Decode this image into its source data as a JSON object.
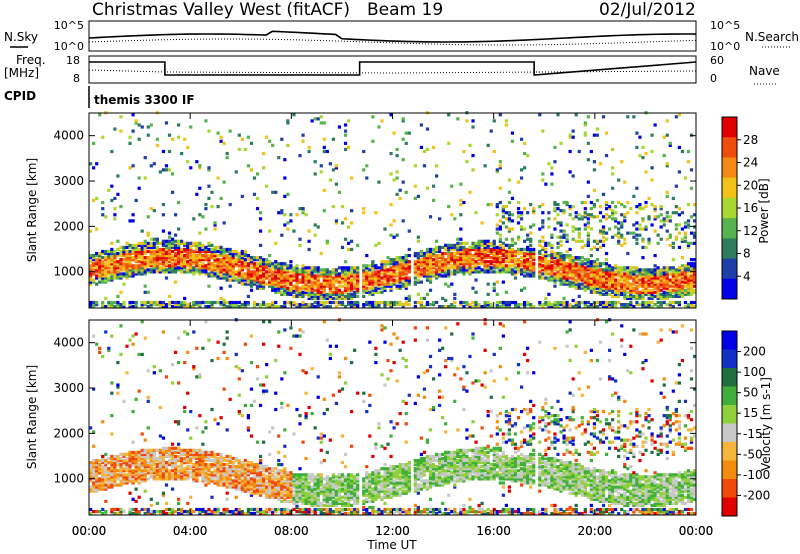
{
  "header": {
    "station": "Christmas Valley West (fitACF)",
    "beam": "Beam 19",
    "date": "02/Jul/2012"
  },
  "summary_panels": {
    "nsky_label": "N.Sky",
    "nsearch_label": "N.Search",
    "noise_ticks_left": [
      "10^5",
      "10^0"
    ],
    "noise_ticks_right": [
      "10^5",
      "10^0"
    ],
    "freq_label": [
      "Freq.",
      "[MHz]"
    ],
    "freq_ticks_left": [
      "18",
      "8"
    ],
    "nave_label": "Nave",
    "nave_ticks_right": [
      "60",
      "0"
    ],
    "cpid_label": "CPID",
    "cpid_value": "themis 3300 IF"
  },
  "colors": {
    "power": [
      "#0000e6",
      "#1f3fa8",
      "#2e7d5c",
      "#57b34d",
      "#a8d82f",
      "#f2c21a",
      "#f48a12",
      "#ee4d0e",
      "#e00000"
    ],
    "velocity": [
      "#e00000",
      "#f04a0a",
      "#f28c0f",
      "#f7b43a",
      "#c8c8c8",
      "#8fcf3c",
      "#3fae3a",
      "#1f6f3f",
      "#1030c8",
      "#0000e6"
    ]
  },
  "chart_data": [
    {
      "type": "heatmap",
      "name": "power",
      "ylabel": "Slant Range [km]",
      "yticks": [
        1000,
        2000,
        3000,
        4000
      ],
      "ylim": [
        200,
        4500
      ],
      "xlim": [
        0,
        24
      ],
      "colorbar": {
        "label": "Power [dB]",
        "ticks": [
          "28",
          "24",
          "20",
          "16",
          "12",
          "8",
          "4"
        ],
        "range": [
          0,
          32
        ]
      }
    },
    {
      "type": "heatmap",
      "name": "velocity",
      "ylabel": "Slant Range [km]",
      "yticks": [
        1000,
        2000,
        3000,
        4000
      ],
      "ylim": [
        200,
        4500
      ],
      "xlim": [
        0,
        24
      ],
      "xlabel": "Time UT",
      "xticks": [
        "00:00",
        "04:00",
        "08:00",
        "12:00",
        "16:00",
        "20:00",
        "00:00"
      ],
      "colorbar": {
        "label": "Velocity [m s-1]",
        "ticks": [
          "200",
          "100",
          "50",
          "15",
          "-15",
          "-50",
          "-100",
          "-200"
        ]
      }
    }
  ]
}
